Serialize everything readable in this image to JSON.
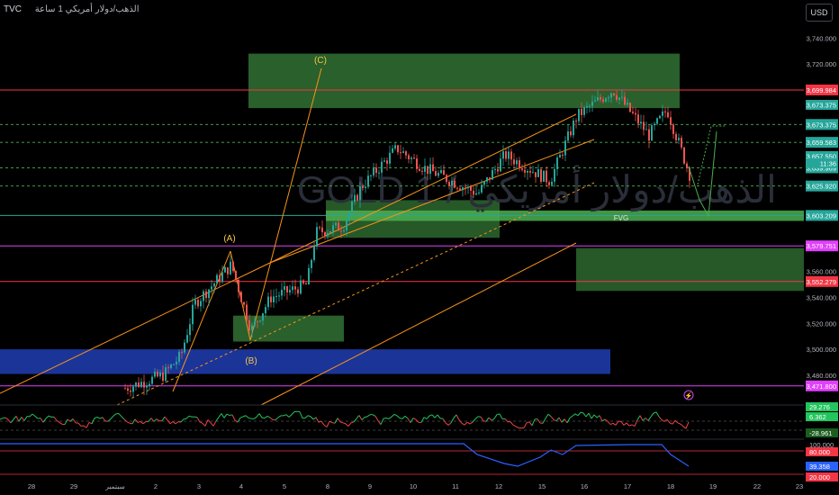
{
  "header": {
    "symbol": "TVC",
    "title": "الذهب/دولار أمريكي",
    "interval": "1 ساعة"
  },
  "currency_label": "USD",
  "watermark": "GOLD 1 / الذهب/دولار أمريكي",
  "colors": {
    "up": "#26a69a",
    "down": "#ef5350",
    "orange": "#f7931a",
    "red_line": "#f23645",
    "magenta": "#e040fb",
    "green_zone": "#4caf50",
    "blue_zone": "#1e3aa8",
    "rsi_up": "#22c55e",
    "rsi_down": "#ef4444",
    "osc_line": "#2962ff"
  },
  "chart_data": {
    "type": "candlestick",
    "y_axis": {
      "ticks": [
        3480,
        3500,
        3520,
        3540,
        3560,
        3720,
        3740
      ],
      "tick_labels": [
        "3,480.000",
        "3,500.000",
        "3,520.000",
        "3,540.000",
        "3,560.000",
        "3,720.000",
        "3,740.000"
      ],
      "range": [
        3464,
        3752
      ]
    },
    "x_axis": {
      "labels": [
        "28",
        "29",
        "سبتمبر",
        "2",
        "3",
        "4",
        "5",
        "8",
        "9",
        "10",
        "11",
        "12",
        "15",
        "16",
        "17",
        "18",
        "19",
        "22",
        "23"
      ]
    },
    "horizontal_levels": [
      {
        "price": 3699.984,
        "label": "3,699.984",
        "style": "red"
      },
      {
        "price": 3673.375,
        "label": "3,673.375",
        "style": "green-dash"
      },
      {
        "price": 3659.583,
        "label": "3,659.583",
        "style": "green-dash"
      },
      {
        "price": 3639.969,
        "label": "3,639.969",
        "style": "green-dash"
      },
      {
        "price": 3625.92,
        "label": "3,625.920",
        "style": "green-dash"
      },
      {
        "price": 3603.209,
        "label": "3,603.209",
        "style": "green-solid"
      },
      {
        "price": 3579.751,
        "label": "3,579.751",
        "style": "magenta"
      },
      {
        "price": 3552.279,
        "label": "3,552.279",
        "style": "red"
      },
      {
        "price": 3471.8,
        "label": "3,471.800",
        "style": "magenta"
      }
    ],
    "extra_price_labels": [
      {
        "price": 3688.5,
        "label": "3,673.375"
      },
      {
        "price": 3649.0,
        "label": "3,657.550"
      },
      {
        "price": 3643.5,
        "label": "11:36"
      }
    ],
    "wave_labels": [
      "(A)",
      "(B)",
      "(C)"
    ],
    "fvg_label": "FVG",
    "rsi": {
      "values": [
        29.276,
        6.362,
        -28.961
      ],
      "labels": [
        "29.276",
        "6.362",
        "-28.961"
      ]
    },
    "oscillator": {
      "labels": [
        "100.000",
        "80.000",
        "39.358",
        "20.000"
      ]
    }
  }
}
